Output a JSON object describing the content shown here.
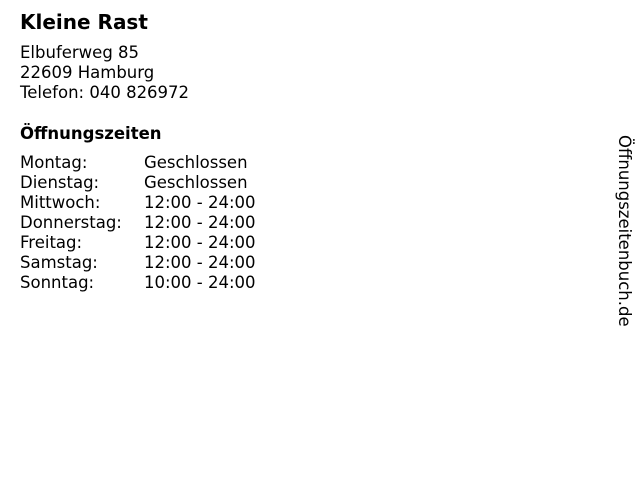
{
  "name": "Kleine Rast",
  "address": {
    "street": "Elbuferweg 85",
    "city": "22609 Hamburg",
    "phone": "Telefon: 040 826972"
  },
  "hours_title": "Öffnungszeiten",
  "hours": [
    {
      "day": "Montag:",
      "time": "Geschlossen"
    },
    {
      "day": "Dienstag:",
      "time": "Geschlossen"
    },
    {
      "day": "Mittwoch:",
      "time": "12:00 - 24:00"
    },
    {
      "day": "Donnerstag:",
      "time": "12:00 - 24:00"
    },
    {
      "day": "Freitag:",
      "time": "12:00 - 24:00"
    },
    {
      "day": "Samstag:",
      "time": "12:00 - 24:00"
    },
    {
      "day": "Sonntag:",
      "time": "10:00 - 24:00"
    }
  ],
  "site": "Öffnungszeitenbuch.de"
}
